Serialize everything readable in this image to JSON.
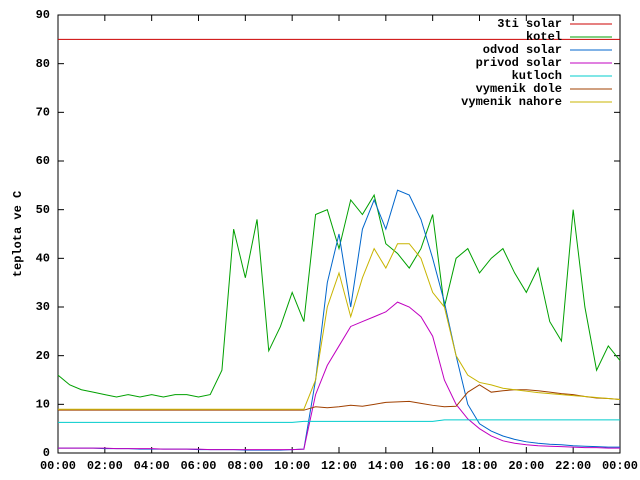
{
  "chart_data": {
    "type": "line",
    "ylabel": "teplota ve C",
    "x": [
      0,
      0.5,
      1,
      1.5,
      2,
      2.5,
      3,
      3.5,
      4,
      4.5,
      5,
      5.5,
      6,
      6.5,
      7,
      7.5,
      8,
      8.5,
      9,
      9.5,
      10,
      10.5,
      11,
      11.5,
      12,
      12.5,
      13,
      13.5,
      14,
      14.5,
      15,
      15.5,
      16,
      16.5,
      17,
      17.5,
      18,
      18.5,
      19,
      19.5,
      20,
      20.5,
      21,
      21.5,
      22,
      22.5,
      23,
      23.5,
      24
    ],
    "xlim": [
      0,
      24
    ],
    "xticks": [
      {
        "value": 0,
        "label": "00:00"
      },
      {
        "value": 2,
        "label": "02:00"
      },
      {
        "value": 4,
        "label": "04:00"
      },
      {
        "value": 6,
        "label": "06:00"
      },
      {
        "value": 8,
        "label": "08:00"
      },
      {
        "value": 10,
        "label": "10:00"
      },
      {
        "value": 12,
        "label": "12:00"
      },
      {
        "value": 14,
        "label": "14:00"
      },
      {
        "value": 16,
        "label": "16:00"
      },
      {
        "value": 18,
        "label": "18:00"
      },
      {
        "value": 20,
        "label": "20:00"
      },
      {
        "value": 22,
        "label": "22:00"
      },
      {
        "value": 24,
        "label": "00:00"
      }
    ],
    "ylim": [
      0,
      90
    ],
    "yticks": [
      0,
      10,
      20,
      30,
      40,
      50,
      60,
      70,
      80,
      90
    ],
    "legend": "top right",
    "series": [
      {
        "name": "3ti solar",
        "color": "#cc0000",
        "values": [
          85,
          85,
          85,
          85,
          85,
          85,
          85,
          85,
          85,
          85,
          85,
          85,
          85,
          85,
          85,
          85,
          85,
          85,
          85,
          85,
          85,
          85,
          85,
          85,
          85,
          85,
          85,
          85,
          85,
          85,
          85,
          85,
          85,
          85,
          85,
          85,
          85,
          85,
          85,
          85,
          85,
          85,
          85,
          85,
          85,
          85,
          85,
          85,
          85
        ]
      },
      {
        "name": "kotel",
        "color": "#00a000",
        "values": [
          16,
          14,
          13,
          12.5,
          12,
          11.5,
          12,
          11.5,
          12,
          11.5,
          12,
          12,
          11.5,
          12,
          17,
          46,
          36,
          48,
          21,
          26,
          33,
          27,
          49,
          50,
          42,
          52,
          49,
          53,
          43,
          41,
          38,
          42,
          49,
          30,
          40,
          42,
          37,
          40,
          42,
          37,
          33,
          38,
          27,
          23,
          50,
          30,
          17,
          22,
          19
        ]
      },
      {
        "name": "odvod solar",
        "color": "#0066cc",
        "values": [
          1,
          1,
          1,
          1,
          0.9,
          0.9,
          0.9,
          0.8,
          0.8,
          0.8,
          0.8,
          0.8,
          0.7,
          0.7,
          0.7,
          0.7,
          0.6,
          0.6,
          0.6,
          0.6,
          0.7,
          0.8,
          15,
          35,
          45,
          30,
          46,
          52,
          46,
          54,
          53,
          48,
          40,
          31,
          20,
          10,
          6,
          4.5,
          3.5,
          2.8,
          2.3,
          2,
          1.8,
          1.7,
          1.5,
          1.4,
          1.3,
          1.2,
          1.2
        ]
      },
      {
        "name": "privod solar",
        "color": "#c000c0",
        "values": [
          1,
          1,
          1,
          1,
          1,
          0.9,
          0.9,
          0.9,
          0.9,
          0.8,
          0.8,
          0.8,
          0.8,
          0.7,
          0.7,
          0.7,
          0.7,
          0.7,
          0.7,
          0.7,
          0.7,
          0.8,
          12,
          18,
          22,
          26,
          27,
          28,
          29,
          31,
          30,
          28,
          24,
          15,
          10,
          7,
          5,
          3.5,
          2.5,
          2,
          1.7,
          1.5,
          1.4,
          1.3,
          1.2,
          1.1,
          1.1,
          1,
          1
        ]
      },
      {
        "name": "kutloch",
        "color": "#00cccc",
        "values": [
          6.3,
          6.3,
          6.3,
          6.3,
          6.3,
          6.3,
          6.3,
          6.3,
          6.3,
          6.3,
          6.3,
          6.3,
          6.3,
          6.3,
          6.3,
          6.3,
          6.3,
          6.3,
          6.3,
          6.3,
          6.3,
          6.5,
          6.5,
          6.5,
          6.5,
          6.5,
          6.5,
          6.5,
          6.5,
          6.5,
          6.5,
          6.5,
          6.5,
          6.8,
          6.8,
          6.8,
          6.8,
          6.8,
          6.8,
          6.8,
          6.8,
          6.8,
          6.8,
          6.8,
          6.8,
          6.8,
          6.8,
          6.8,
          6.8
        ]
      },
      {
        "name": "vymenik dole",
        "color": "#a04000",
        "values": [
          8.8,
          8.8,
          8.8,
          8.8,
          8.8,
          8.8,
          8.8,
          8.8,
          8.8,
          8.8,
          8.8,
          8.8,
          8.8,
          8.8,
          8.8,
          8.8,
          8.8,
          8.8,
          8.8,
          8.8,
          8.8,
          8.8,
          9.5,
          9.3,
          9.5,
          9.8,
          9.6,
          10,
          10.4,
          10.5,
          10.6,
          10.2,
          9.8,
          9.5,
          9.6,
          12.5,
          14,
          12.5,
          12.8,
          13,
          13,
          12.8,
          12.5,
          12.2,
          12,
          11.6,
          11.3,
          11.2,
          11
        ]
      },
      {
        "name": "vymenik nahore",
        "color": "#c8b400",
        "values": [
          9,
          9,
          9,
          9,
          9,
          9,
          9,
          9,
          9,
          9,
          9,
          9,
          9,
          9,
          9,
          9,
          9,
          9,
          9,
          9,
          9,
          9,
          15,
          30,
          37,
          28,
          36,
          42,
          38,
          43,
          43,
          40,
          33,
          30,
          20,
          16,
          14.5,
          14,
          13.3,
          13,
          12.7,
          12.4,
          12.2,
          12,
          11.8,
          11.6,
          11.4,
          11.2,
          11
        ]
      }
    ]
  }
}
